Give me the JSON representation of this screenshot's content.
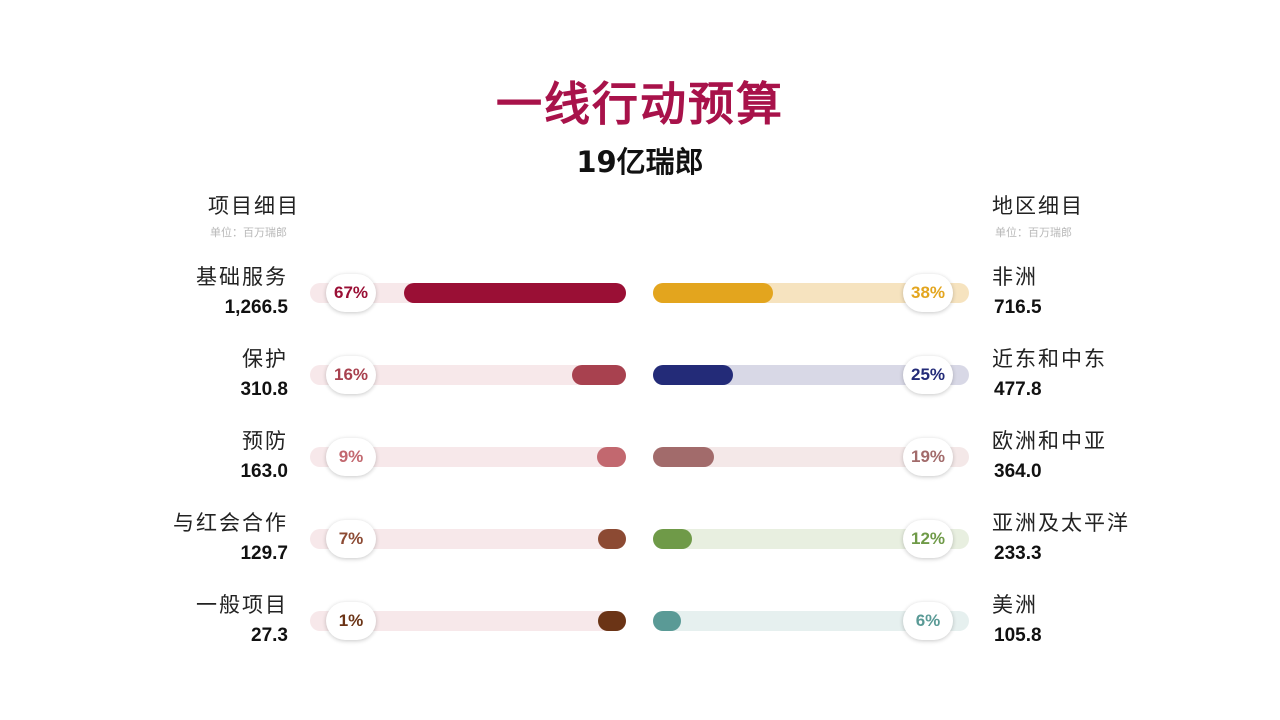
{
  "title": "一线行动预算",
  "subtitle": "19亿瑞郎",
  "left_section": {
    "heading": "项目细目",
    "unit": "单位：百万瑞郎"
  },
  "right_section": {
    "heading": "地区细目",
    "unit": "单位：百万瑞郎"
  },
  "chart_data": [
    {
      "type": "bar",
      "title": "项目细目",
      "subtitle": "单位：百万瑞郎",
      "categories": [
        "基础服务",
        "保护",
        "预防",
        "与红会合作",
        "一般项目"
      ],
      "values": [
        1266.5,
        310.8,
        163.0,
        129.7,
        27.3
      ],
      "value_labels": [
        "1,266.5",
        "310.8",
        "163.0",
        "129.7",
        "27.3"
      ],
      "percent_labels": [
        "67%",
        "16%",
        "9%",
        "7%",
        "1%"
      ],
      "percents": [
        67,
        16,
        9,
        7,
        1
      ],
      "colors": [
        "#9a0f35",
        "#a8414f",
        "#c2686f",
        "#8c4a33",
        "#6b3416"
      ],
      "track_color": "#f7e8ea"
    },
    {
      "type": "bar",
      "title": "地区细目",
      "subtitle": "单位：百万瑞郎",
      "categories": [
        "非洲",
        "近东和中东",
        "欧洲和中亚",
        "亚洲及太平洋",
        "美洲"
      ],
      "values": [
        716.5,
        477.8,
        364.0,
        233.3,
        105.8
      ],
      "value_labels": [
        "716.5",
        "477.8",
        "364.0",
        "233.3",
        "105.8"
      ],
      "percent_labels": [
        "38%",
        "25%",
        "19%",
        "12%",
        "6%"
      ],
      "percents": [
        38,
        25,
        19,
        12,
        6
      ],
      "colors": [
        "#e3a51e",
        "#232b78",
        "#a26b6b",
        "#6f9a48",
        "#5a9a96"
      ],
      "track_colors": [
        "#f6e3bf",
        "#d8d8e6",
        "#f4e8e8",
        "#e8efe0",
        "#e6f0ef"
      ]
    }
  ]
}
